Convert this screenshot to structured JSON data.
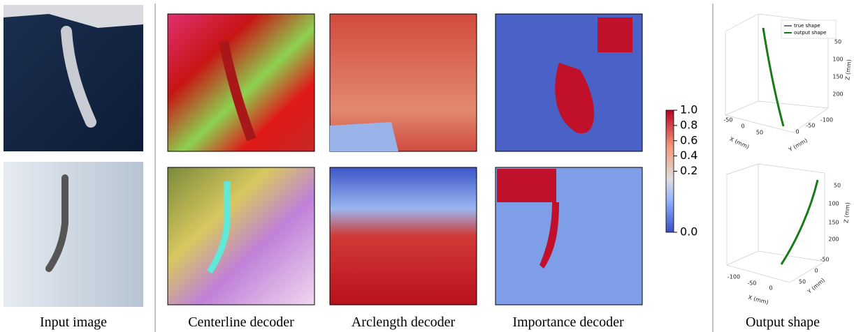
{
  "captions": [
    "Input image",
    "Centerline decoder",
    "Arclength decoder",
    "Importance decoder",
    "Output shape"
  ],
  "colorbar": {
    "ticks": [
      {
        "value": 1.0,
        "label": "1.0"
      },
      {
        "value": 0.8,
        "label": "0.8"
      },
      {
        "value": 0.6,
        "label": "0.6"
      },
      {
        "value": 0.4,
        "label": "0.4"
      },
      {
        "value": 0.2,
        "label": "0.2"
      },
      {
        "value": 0.0,
        "label": "0.0"
      }
    ],
    "lim": [
      0,
      1
    ],
    "norm": {
      "type": "two-slope",
      "center": 0.2
    }
  },
  "plots": [
    {
      "legend": [
        "true shape",
        "output shape"
      ],
      "z_ticks": [
        "50",
        "100",
        "150",
        "200"
      ],
      "z_label": "Z (mm)",
      "x_ticks": [
        "-50",
        "0",
        "50"
      ],
      "x_label": "X (mm)",
      "y_ticks": [
        "-100",
        "-50",
        "0"
      ],
      "y_label": "Y (mm)"
    },
    {
      "z_ticks": [
        "50",
        "100",
        "150",
        "200"
      ],
      "z_label": "Z (mm)",
      "x_ticks": [
        "-100",
        "-50",
        "0"
      ],
      "x_label": "X (mm)",
      "y_ticks": [
        "-50",
        "0",
        "50"
      ],
      "y_label": "Y (mm)"
    }
  ]
}
